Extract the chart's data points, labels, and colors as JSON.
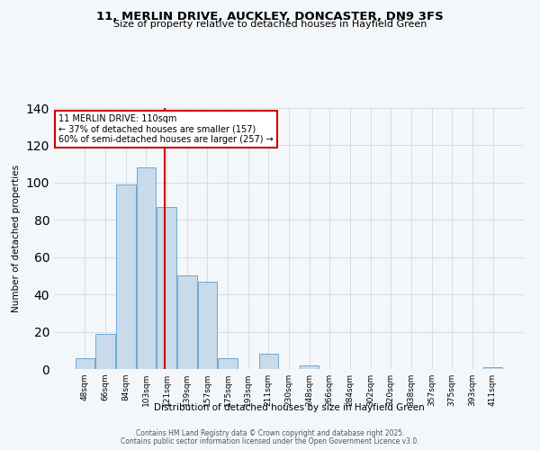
{
  "title": "11, MERLIN DRIVE, AUCKLEY, DONCASTER, DN9 3FS",
  "subtitle": "Size of property relative to detached houses in Hayfield Green",
  "xlabel": "Distribution of detached houses by size in Hayfield Green",
  "ylabel": "Number of detached properties",
  "bar_labels": [
    "48sqm",
    "66sqm",
    "84sqm",
    "103sqm",
    "121sqm",
    "139sqm",
    "157sqm",
    "175sqm",
    "193sqm",
    "211sqm",
    "230sqm",
    "248sqm",
    "266sqm",
    "284sqm",
    "302sqm",
    "320sqm",
    "338sqm",
    "357sqm",
    "375sqm",
    "393sqm",
    "411sqm"
  ],
  "bar_values": [
    6,
    19,
    99,
    108,
    87,
    50,
    47,
    6,
    0,
    8,
    0,
    2,
    0,
    0,
    0,
    0,
    0,
    0,
    0,
    0,
    1
  ],
  "bar_color": "#c9daea",
  "bar_edge_color": "#6aaad4",
  "ylim": [
    0,
    140
  ],
  "yticks": [
    0,
    20,
    40,
    60,
    80,
    100,
    120,
    140
  ],
  "vline_color": "#cc0000",
  "annotation_title": "11 MERLIN DRIVE: 110sqm",
  "annotation_line1": "← 37% of detached houses are smaller (157)",
  "annotation_line2": "60% of semi-detached houses are larger (257) →",
  "annotation_box_color": "#ffffff",
  "annotation_box_edge_color": "#cc0000",
  "footer1": "Contains HM Land Registry data © Crown copyright and database right 2025.",
  "footer2": "Contains public sector information licensed under the Open Government Licence v3.0.",
  "background_color": "#f4f7fa",
  "plot_background": "#f4f7fa"
}
